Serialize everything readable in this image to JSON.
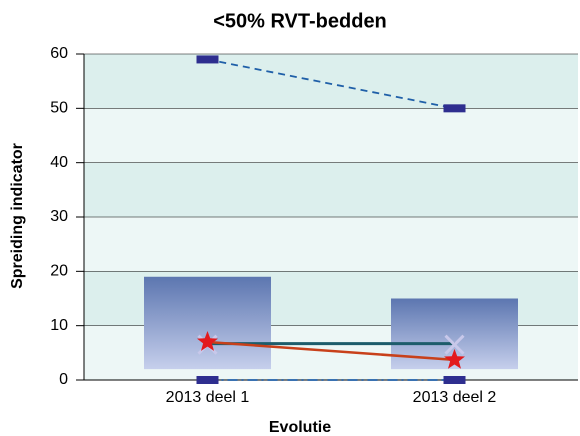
{
  "chart_data": {
    "type": "box",
    "title": "<50% RVT-bedden",
    "x_label": "Evolutie",
    "y_label": "Spreiding indicator",
    "categories": [
      "2013 deel 1",
      "2013 deel 2"
    ],
    "max": [
      59,
      50
    ],
    "min": [
      0,
      0
    ],
    "q1": [
      2,
      2
    ],
    "q3": [
      19,
      15
    ],
    "median": [
      6.7,
      6.7
    ],
    "mean": [
      6.5,
      6.5
    ],
    "highlight": [
      7,
      3.7
    ],
    "max_color": "#1f5fa8",
    "min_color": "#1f5fa8",
    "marker_color": "#2e2e8f",
    "median_color": "#1d5c6b",
    "mean_color": "#c8c8ea",
    "highlight_color": "#e31a1c",
    "highlight_line_color": "#c8401a",
    "ylim": [
      0,
      60
    ],
    "yticks": [
      0,
      10,
      20,
      30,
      40,
      50,
      60
    ],
    "grid": true
  }
}
